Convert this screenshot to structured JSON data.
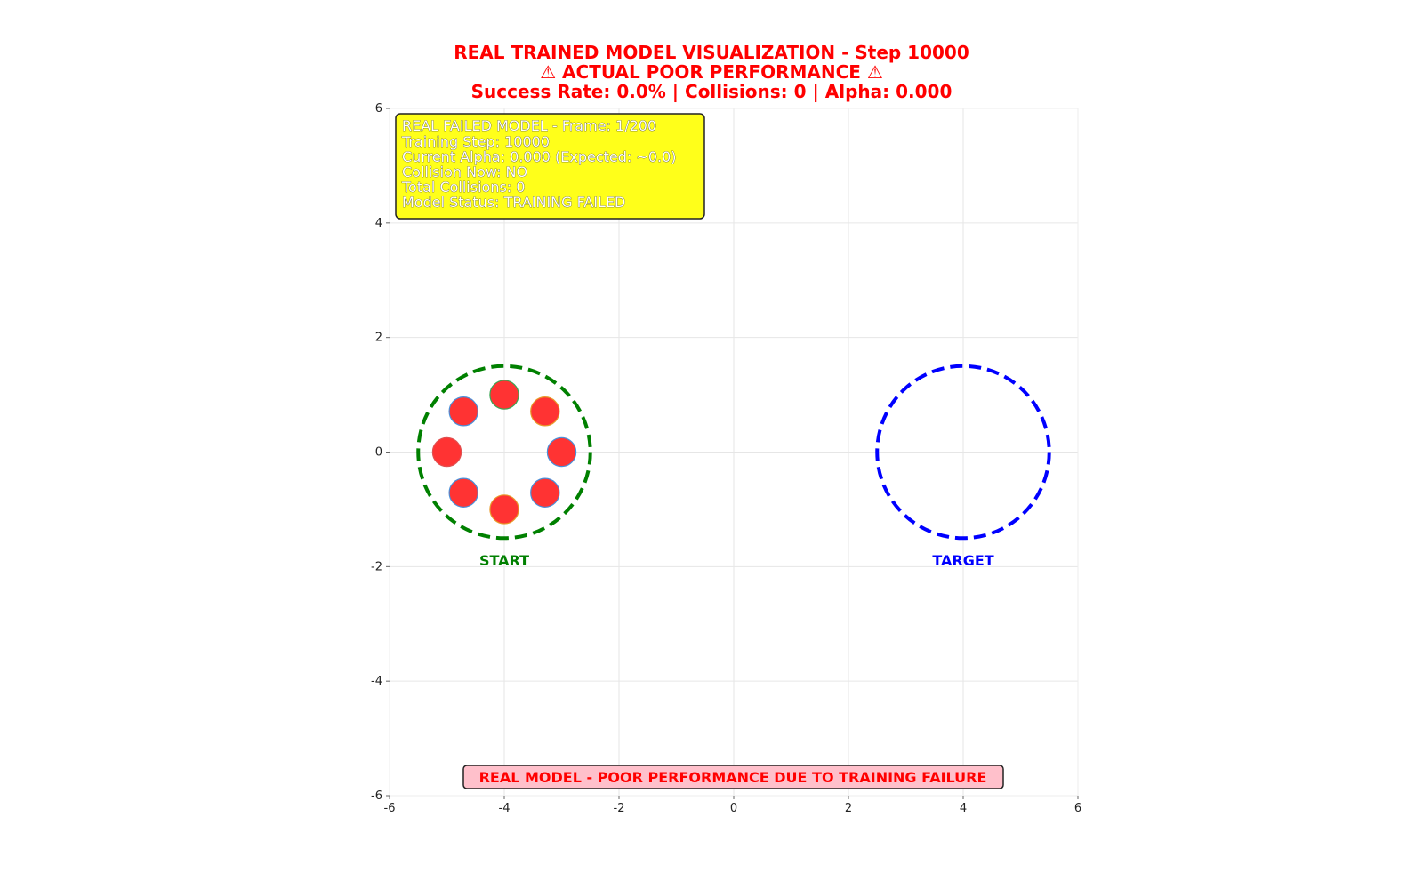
{
  "title": {
    "line1": "REAL TRAINED MODEL VISUALIZATION - Step 10000",
    "line2": "⚠ ACTUAL POOR PERFORMANCE ⚠",
    "line3": "Success Rate: 0.0% | Collisions: 0 | Alpha: 0.000"
  },
  "info_box": {
    "lines": [
      "REAL FAILED MODEL - Frame: 1/200",
      "Training Step: 10000",
      "Current Alpha: 0.000 (Expected: ~0.0)",
      "Collision Now: NO",
      "Total Collisions: 0",
      "Model Status: TRAINING FAILED"
    ],
    "background": "#ffff1a"
  },
  "banner": {
    "text": "REAL MODEL - POOR PERFORMANCE DUE TO TRAINING FAILURE",
    "background": "#ffc0cb",
    "color": "#ff0000"
  },
  "chart_data": {
    "type": "scatter",
    "xlim": [
      -6,
      6
    ],
    "ylim": [
      -6,
      6
    ],
    "xticks": [
      "-6",
      "-4",
      "-2",
      "0",
      "2",
      "4",
      "6"
    ],
    "yticks": [
      "6",
      "4",
      "2",
      "0",
      "-2",
      "-4",
      "-6"
    ],
    "grid": true,
    "zones": [
      {
        "label": "START",
        "cx": -4,
        "cy": 0,
        "r": 1.5,
        "color": "#008000"
      },
      {
        "label": "TARGET",
        "cx": 4,
        "cy": 0,
        "r": 1.5,
        "color": "#0000ff"
      }
    ],
    "agents": {
      "color": "#ff3333",
      "radius": 0.25,
      "points": [
        {
          "x": -4.0,
          "y": 1.0
        },
        {
          "x": -3.29,
          "y": 0.71
        },
        {
          "x": -3.0,
          "y": 0.0
        },
        {
          "x": -3.29,
          "y": -0.71
        },
        {
          "x": -4.0,
          "y": -1.0
        },
        {
          "x": -4.71,
          "y": -0.71
        },
        {
          "x": -5.0,
          "y": 0.0
        },
        {
          "x": -4.71,
          "y": 0.71
        }
      ]
    }
  }
}
